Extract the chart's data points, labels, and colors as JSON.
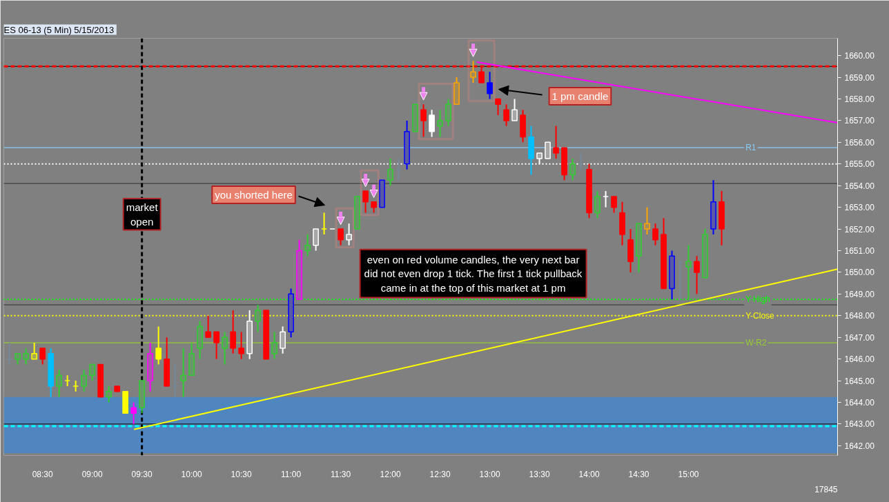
{
  "chart_data": {
    "type": "candlestick",
    "title": "ES 06-13 (5 Min)  5/15/2013",
    "x": [
      8.1667,
      8.25,
      8.3333,
      8.4167,
      8.5,
      8.5833,
      8.6667,
      8.75,
      8.8333,
      8.9167,
      9.0,
      9.0833,
      9.1667,
      9.25,
      9.3333,
      9.4167,
      9.5,
      9.5833,
      9.6667,
      9.75,
      9.8333,
      9.9167,
      10.0,
      10.0833,
      10.1667,
      10.25,
      10.3333,
      10.4167,
      10.5,
      10.5833,
      10.6667,
      10.75,
      10.8333,
      10.9167,
      11.0,
      11.0833,
      11.1667,
      11.25,
      11.3333,
      11.4167,
      11.5,
      11.5833,
      11.6667,
      11.75,
      11.8333,
      11.9167,
      12.0,
      12.0833,
      12.1667,
      12.25,
      12.3333,
      12.4167,
      12.5,
      12.5833,
      12.6667,
      12.8333,
      12.9167,
      13.0,
      13.0833,
      13.1667,
      13.25,
      13.3333,
      13.4167,
      13.5,
      13.5833,
      13.6667,
      13.75,
      13.8333,
      13.9167,
      14.0,
      14.0833,
      14.1667,
      14.25,
      14.3333,
      14.4167,
      14.5,
      14.5833,
      14.6667,
      14.75,
      14.8333,
      14.9167,
      15.0,
      15.0833,
      15.1667,
      15.25,
      15.3333
    ],
    "ohlc": [
      [
        1646.0,
        1646.75,
        1645.75,
        1646.0
      ],
      [
        1646.0,
        1646.25,
        1645.75,
        1646.25
      ],
      [
        1646.0,
        1646.5,
        1645.75,
        1646.25
      ],
      [
        1646.0,
        1646.75,
        1646.0,
        1646.25
      ],
      [
        1646.5,
        1646.5,
        1645.75,
        1646.0
      ],
      [
        1646.25,
        1646.5,
        1644.25,
        1644.75
      ],
      [
        1644.75,
        1645.5,
        1644.25,
        1645.25
      ],
      [
        1645.0,
        1645.25,
        1644.75,
        1645.0
      ],
      [
        1644.75,
        1645.0,
        1644.5,
        1644.75
      ],
      [
        1644.75,
        1645.5,
        1644.5,
        1645.25
      ],
      [
        1645.25,
        1645.75,
        1645.0,
        1645.75
      ],
      [
        1645.75,
        1645.75,
        1644.25,
        1644.25
      ],
      [
        1644.25,
        1644.75,
        1644.0,
        1644.5
      ],
      [
        1644.75,
        1644.75,
        1644.5,
        1644.5
      ],
      [
        1644.5,
        1644.5,
        1643.5,
        1643.5
      ],
      [
        1643.75,
        1644.0,
        1643.0,
        1643.5
      ],
      [
        1643.75,
        1645.0,
        1643.5,
        1645.0
      ],
      [
        1645.0,
        1646.75,
        1644.5,
        1646.25
      ],
      [
        1646.5,
        1647.5,
        1645.75,
        1646.0
      ],
      [
        1646.0,
        1647.0,
        1644.75,
        1644.75
      ],
      [
        1644.75,
        1645.75,
        1644.25,
        1644.75
      ],
      [
        1645.0,
        1646.5,
        1644.25,
        1645.25
      ],
      [
        1645.25,
        1646.75,
        1645.25,
        1646.25
      ],
      [
        1646.5,
        1647.75,
        1646.0,
        1647.5
      ],
      [
        1647.25,
        1648.0,
        1647.0,
        1647.0
      ],
      [
        1647.25,
        1647.25,
        1646.0,
        1646.75
      ],
      [
        1646.5,
        1647.25,
        1645.75,
        1647.0
      ],
      [
        1647.25,
        1648.25,
        1646.25,
        1646.5
      ],
      [
        1646.5,
        1647.25,
        1646.0,
        1646.25
      ],
      [
        1646.25,
        1648.25,
        1646.0,
        1647.75
      ],
      [
        1647.75,
        1648.5,
        1647.25,
        1648.25
      ],
      [
        1648.25,
        1648.25,
        1646.0,
        1646.0
      ],
      [
        1646.25,
        1647.25,
        1646.0,
        1646.75
      ],
      [
        1646.5,
        1647.5,
        1646.25,
        1647.25
      ],
      [
        1647.25,
        1649.25,
        1647.0,
        1649.0
      ],
      [
        1648.75,
        1651.5,
        1648.75,
        1651.0
      ],
      [
        1651.0,
        1651.75,
        1650.75,
        1651.25
      ],
      [
        1651.25,
        1652.0,
        1651.0,
        1652.0
      ],
      [
        1652.0,
        1652.75,
        1651.75,
        1652.0
      ],
      [
        1652.0,
        1652.0,
        1652.0,
        1652.0
      ],
      [
        1652.0,
        1652.0,
        1651.25,
        1651.5
      ],
      [
        1651.5,
        1652.25,
        1651.25,
        1651.75
      ],
      [
        1652.0,
        1653.5,
        1652.0,
        1653.5
      ],
      [
        1653.75,
        1653.75,
        1652.75,
        1653.25
      ],
      [
        1653.25,
        1653.25,
        1652.75,
        1653.0
      ],
      [
        1653.0,
        1654.25,
        1653.0,
        1654.25
      ],
      [
        1654.25,
        1655.25,
        1654.0,
        1654.75
      ],
      [
        1654.75,
        1655.25,
        1654.25,
        1654.75
      ],
      [
        1655.0,
        1657.0,
        1654.75,
        1656.5
      ],
      [
        1656.5,
        1657.75,
        1656.5,
        1657.75
      ],
      [
        1657.5,
        1657.75,
        1656.25,
        1657.0
      ],
      [
        1657.25,
        1657.5,
        1656.25,
        1656.5
      ],
      [
        1656.75,
        1657.5,
        1656.25,
        1657.0
      ],
      [
        1657.0,
        1658.0,
        1656.75,
        1657.75
      ],
      [
        1657.75,
        1659.0,
        1657.75,
        1658.75
      ],
      [
        1659.0,
        1659.75,
        1658.75,
        1659.25
      ],
      [
        1659.25,
        1659.5,
        1658.75,
        1658.75
      ],
      [
        1658.75,
        1659.25,
        1658.0,
        1658.25
      ],
      [
        1658.0,
        1658.0,
        1657.25,
        1657.75
      ],
      [
        1657.5,
        1657.75,
        1656.75,
        1657.0
      ],
      [
        1657.0,
        1658.0,
        1657.0,
        1657.5
      ],
      [
        1657.25,
        1657.5,
        1656.0,
        1656.25
      ],
      [
        1656.25,
        1656.75,
        1654.5,
        1655.25
      ],
      [
        1655.25,
        1655.5,
        1655.0,
        1655.5
      ],
      [
        1655.25,
        1656.0,
        1655.25,
        1656.0
      ],
      [
        1655.75,
        1656.75,
        1655.25,
        1655.5
      ],
      [
        1655.75,
        1655.75,
        1654.25,
        1654.5
      ],
      [
        1654.5,
        1655.25,
        1654.25,
        1655.0
      ],
      [
        1655.0,
        1655.5,
        1654.75,
        1655.0
      ],
      [
        1654.75,
        1655.0,
        1652.5,
        1652.75
      ],
      [
        1652.75,
        1653.75,
        1652.5,
        1653.5
      ],
      [
        1653.5,
        1653.75,
        1653.0,
        1653.5
      ],
      [
        1653.5,
        1653.5,
        1652.75,
        1653.0
      ],
      [
        1652.75,
        1653.25,
        1651.25,
        1651.75
      ],
      [
        1651.5,
        1652.0,
        1650.0,
        1650.5
      ],
      [
        1650.75,
        1652.25,
        1650.0,
        1652.25
      ],
      [
        1652.0,
        1653.0,
        1651.75,
        1652.25
      ],
      [
        1652.0,
        1652.25,
        1651.25,
        1651.5
      ],
      [
        1651.75,
        1652.5,
        1649.25,
        1649.25
      ],
      [
        1649.25,
        1651.0,
        1648.75,
        1650.75
      ],
      [
        1650.5,
        1650.5,
        1648.75,
        1650.5
      ],
      [
        1650.25,
        1651.25,
        1648.75,
        1650.5
      ],
      [
        1650.5,
        1650.75,
        1649.0,
        1650.0
      ],
      [
        1649.75,
        1652.0,
        1649.75,
        1651.75
      ],
      [
        1652.0,
        1654.25,
        1651.75,
        1653.25
      ],
      [
        1653.25,
        1653.75,
        1651.25,
        1652.0
      ]
    ],
    "colors": [
      "#778899",
      "#32cd32",
      "#32cd32",
      "#ffff00",
      "#ff0000",
      "#00bfff",
      "#32cd32",
      "#ffff00",
      "#ffff00",
      "#32cd32",
      "#32cd32",
      "#ff0000",
      "#32cd32",
      "#ff0000",
      "#ffff00",
      "#ff00ff",
      "#32cd32",
      "#ff00ff",
      "#ffff00",
      "#ff0000",
      "#778899",
      "#32cd32",
      "#32cd32",
      "#32cd32",
      "#ff0000",
      "#ff0000",
      "#32cd32",
      "#ff0000",
      "#ff0000",
      "#ffffff",
      "#32cd32",
      "#ff0000",
      "#32cd32",
      "#ffffff",
      "#0000ff",
      "#ff00ff",
      "#32cd32",
      "#ffffff",
      "#ffff00",
      "#ffffff",
      "#ff0000",
      "#ffffff",
      "#32cd32",
      "#ff0000",
      "#ff0000",
      "#0000ff",
      "#32cd32",
      "#778899",
      "#0000ff",
      "#32cd32",
      "#ff0000",
      "#ffffff",
      "#32cd32",
      "#32cd32",
      "#ffa500",
      "#ffa500",
      "#ff0000",
      "#0000ff",
      "#ff0000",
      "#ff0000",
      "#ffffff",
      "#ff0000",
      "#00bfff",
      "#ffffff",
      "#ffffff",
      "#ff0000",
      "#ff0000",
      "#32cd32",
      "#778899",
      "#ff0000",
      "#32cd32",
      "#ffffff",
      "#ff0000",
      "#ff0000",
      "#ff0000",
      "#32cd32",
      "#ffa500",
      "#ff0000",
      "#ff0000",
      "#0000ff",
      "#778899",
      "#32cd32",
      "#ff0000",
      "#32cd32",
      "#0000ff",
      "#ff0000"
    ],
    "series": [
      {
        "type": "line",
        "color": "#ff00ff",
        "x": [
          12.87,
          16.5
        ],
        "values": [
          1659.7,
          1656.9
        ]
      },
      {
        "type": "line",
        "color": "#ffff00",
        "x": [
          9.42,
          16.5
        ],
        "values": [
          1642.75,
          1650.15
        ]
      }
    ],
    "xlim": [
      8.11,
      16.5
    ],
    "xticks": [
      {
        "value": 8.5,
        "label": "08:30"
      },
      {
        "value": 9.0,
        "label": "09:00"
      },
      {
        "value": 9.5,
        "label": "09:30"
      },
      {
        "value": 10.0,
        "label": "10:00"
      },
      {
        "value": 10.5,
        "label": "10:30"
      },
      {
        "value": 11.0,
        "label": "11:00"
      },
      {
        "value": 11.5,
        "label": "11:30"
      },
      {
        "value": 12.0,
        "label": "12:00"
      },
      {
        "value": 12.5,
        "label": "12:30"
      },
      {
        "value": 13.0,
        "label": "13:00"
      },
      {
        "value": 13.5,
        "label": "13:30"
      },
      {
        "value": 14.0,
        "label": "14:00"
      },
      {
        "value": 14.5,
        "label": "14:30"
      },
      {
        "value": 15.0,
        "label": "15:00"
      }
    ],
    "ylim": [
      1641.55,
      1660.8
    ],
    "yticks": [
      {
        "value": 1642,
        "label": "1642.00"
      },
      {
        "value": 1643,
        "label": "1643.00"
      },
      {
        "value": 1644,
        "label": "1644.00"
      },
      {
        "value": 1645,
        "label": "1645.00"
      },
      {
        "value": 1646,
        "label": "1646.00"
      },
      {
        "value": 1647,
        "label": "1647.00"
      },
      {
        "value": 1648,
        "label": "1648.00"
      },
      {
        "value": 1649,
        "label": "1649.00"
      },
      {
        "value": 1650,
        "label": "1650.00"
      },
      {
        "value": 1651,
        "label": "1651.00"
      },
      {
        "value": 1652,
        "label": "1652.00"
      },
      {
        "value": 1653,
        "label": "1653.00"
      },
      {
        "value": 1654,
        "label": "1654.00"
      },
      {
        "value": 1655,
        "label": "1655.00"
      },
      {
        "value": 1656,
        "label": "1656.00"
      },
      {
        "value": 1657,
        "label": "1657.00"
      },
      {
        "value": 1658,
        "label": "1658.00"
      },
      {
        "value": 1659,
        "label": "1659.00"
      },
      {
        "value": 1660,
        "label": "1660.00"
      }
    ],
    "ref_lines": [
      {
        "axis": "y",
        "value": 1659.5,
        "color": "#1e1e1e"
      },
      {
        "axis": "y",
        "value": 1659.5,
        "color": "#ff0000",
        "line_style": "dashed"
      },
      {
        "axis": "y",
        "value": 1655.75,
        "color": "#87cefa",
        "label": "R1"
      },
      {
        "axis": "y",
        "value": 1655.0,
        "color": "#ffffff",
        "line_style": "dotted"
      },
      {
        "axis": "y",
        "value": 1654.1,
        "color": "#404040"
      },
      {
        "axis": "y",
        "value": 1648.75,
        "color": "#00ff00",
        "line_style": "dotted",
        "label": "Y-High"
      },
      {
        "axis": "y",
        "value": 1648.5,
        "color": "#404040"
      },
      {
        "axis": "y",
        "value": 1648.0,
        "color": "#ffff00",
        "line_style": "dotted",
        "label": "Y-Close"
      },
      {
        "axis": "y",
        "value": 1646.75,
        "color": "#9acd32",
        "label": "W-R2"
      },
      {
        "axis": "y",
        "value": 1643.0,
        "color": "#1e1e1e"
      },
      {
        "axis": "y",
        "value": 1642.9,
        "color": "#00ffff",
        "line_style": "dashed"
      },
      {
        "axis": "x",
        "value": 9.5,
        "color": "#000000",
        "line_style": "dashed",
        "label": "market open"
      }
    ],
    "bands": [
      {
        "axis": "y",
        "from": 1641.65,
        "to": 1644.25,
        "color": "#4f86c0"
      }
    ],
    "annotations": [
      "you shorted here",
      "1 pm candle",
      "even on red volume candles, the very next bar\ndid not even drop 1 tick. The first 1 tick pullback\ncame in at the top of this market at 1 pm",
      "17845"
    ]
  }
}
